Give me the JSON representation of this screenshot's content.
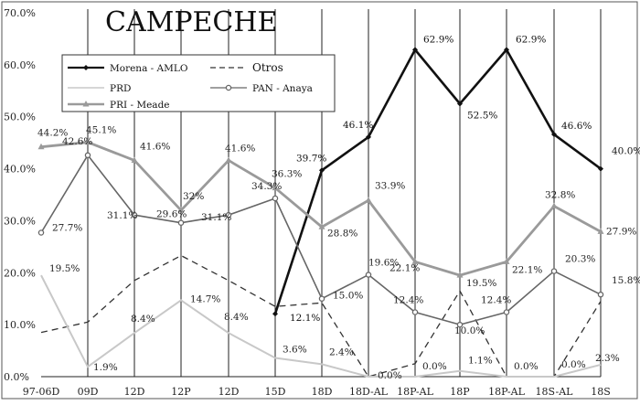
{
  "chart_data": {
    "type": "line",
    "title": "CAMPECHE",
    "xlabel": "",
    "ylabel": "",
    "categories": [
      "97-06D",
      "09D",
      "12D",
      "12P",
      "12D",
      "15D",
      "18D",
      "18D-AL",
      "18P-AL",
      "18P",
      "18P-AL",
      "18S-AL",
      "18S"
    ],
    "ylim": [
      0,
      70
    ],
    "yticks": [
      "0.0%",
      "10.0%",
      "20.0%",
      "30.0%",
      "40.0%",
      "50.0%",
      "60.0%",
      "70.0%"
    ],
    "grid": "vertical",
    "legend_position": "top-left",
    "series": [
      {
        "name": "Morena - AMLO",
        "color": "#111111",
        "dash": "solid",
        "marker": "diamond",
        "values": [
          null,
          null,
          null,
          null,
          null,
          12.1,
          39.7,
          46.1,
          62.9,
          52.5,
          62.9,
          46.6,
          40.0
        ],
        "labels": [
          null,
          null,
          null,
          null,
          null,
          "12.1%",
          "39.7%",
          "46.1%",
          "62.9%",
          "52.5%",
          "62.9%",
          "46.6%",
          "40.0%"
        ]
      },
      {
        "name": "Otros",
        "color": "#333333",
        "dash": "dashed",
        "marker": "none",
        "values": [
          8.5,
          10.5,
          18.5,
          23.3,
          18.5,
          13.5,
          14.2,
          0.0,
          2.5,
          16.5,
          0.0,
          0.0,
          14.5
        ],
        "labels": [
          null,
          null,
          null,
          null,
          null,
          null,
          null,
          null,
          null,
          null,
          null,
          null,
          null
        ]
      },
      {
        "name": "PRD",
        "color": "#c8c8c8",
        "dash": "solid",
        "marker": "none",
        "values": [
          19.5,
          1.9,
          8.4,
          14.7,
          8.4,
          3.6,
          2.4,
          0.0,
          0.0,
          1.1,
          0.0,
          0.0,
          2.3
        ],
        "labels": [
          "19.5%",
          "1.9%",
          "8.4%",
          "14.7%",
          "8.4%",
          "3.6%",
          "2.4%",
          "0.0%",
          "0.0%",
          "1.1%",
          "0.0%",
          "0.0%",
          "2.3%"
        ]
      },
      {
        "name": "PAN - Anaya",
        "color": "#666666",
        "dash": "solid",
        "marker": "circle",
        "values": [
          27.7,
          42.6,
          31.1,
          29.6,
          31.1,
          34.3,
          15.0,
          19.6,
          12.4,
          10.0,
          12.4,
          20.3,
          15.8
        ],
        "labels": [
          "27.7%",
          "42.6%",
          "31.1%",
          "29.6%",
          "31.1%",
          "34.3%",
          "15.0%",
          "19.6%",
          "12.4%",
          "10.0%",
          "12.4%",
          "20.3%",
          "15.8%"
        ]
      },
      {
        "name": "PRI - Meade",
        "color": "#9a9a9a",
        "dash": "solid",
        "marker": "triangle",
        "values": [
          44.2,
          45.1,
          41.6,
          32.0,
          41.6,
          36.3,
          28.8,
          33.9,
          22.1,
          19.5,
          22.1,
          32.8,
          27.9
        ],
        "labels": [
          "44.2%",
          "45.1%",
          "41.6%",
          "32%",
          "41.6%",
          "36.3%",
          "28.8%",
          "33.9%",
          "22.1%",
          "19.5%",
          "22.1%",
          "32.8%",
          "27.9%"
        ]
      }
    ]
  }
}
